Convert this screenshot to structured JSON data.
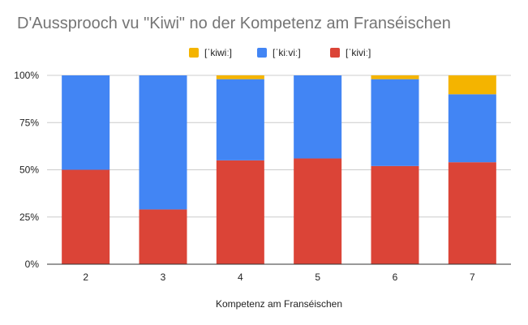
{
  "chart_data": {
    "type": "bar",
    "stacked": true,
    "normalized": true,
    "title": "D'Aussprooch vu \"Kiwi\" no der Kompetenz am Franséischen",
    "xlabel": "Kompetenz am Franséischen",
    "ylabel": "",
    "categories": [
      "2",
      "3",
      "4",
      "5",
      "6",
      "7"
    ],
    "y_ticks": [
      "0%",
      "25%",
      "50%",
      "75%",
      "100%"
    ],
    "ylim": [
      0,
      100
    ],
    "grid": true,
    "legend_position": "top",
    "series": [
      {
        "name": "[ˈkiviː]",
        "color": "#db4437",
        "values": [
          50,
          29,
          55,
          56,
          52,
          54
        ]
      },
      {
        "name": "[ˈkiːviː]",
        "color": "#4285f4",
        "values": [
          50,
          71,
          43,
          44,
          46,
          36
        ]
      },
      {
        "name": "[ˈkiwiː]",
        "color": "#f4b400",
        "values": [
          0,
          0,
          2,
          0,
          2,
          10
        ]
      }
    ]
  }
}
